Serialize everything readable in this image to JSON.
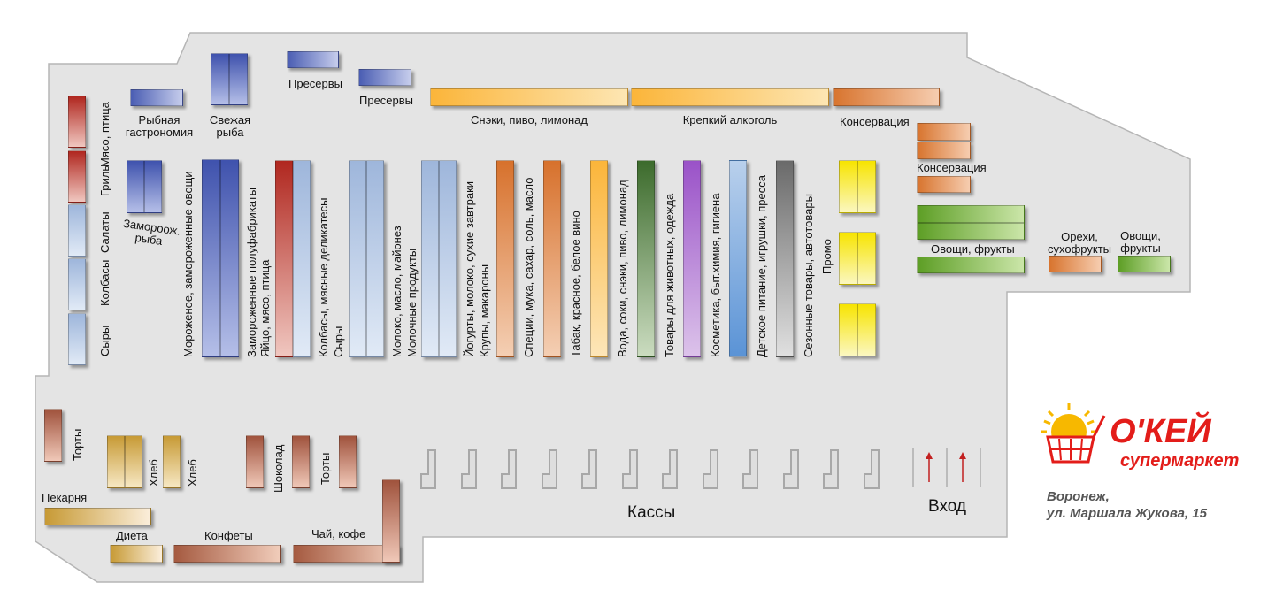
{
  "store_map": {
    "section_labels": {
      "fish_gastronomy": "Рыбная гастрономия",
      "fresh_fish": "Свежая рыба",
      "preserves_1": "Пресервы",
      "preserves_2": "Пресервы",
      "snacks_beer": "Снэки, пиво, лимонад",
      "strong_alcohol": "Крепкий алкоголь",
      "canned_1": "Консервация",
      "canned_2": "Консервация",
      "meat_poultry": "Мясо, птица",
      "grill": "Гриль",
      "salads": "Салаты",
      "sausages": "Колбасы",
      "cheeses": "Сыры",
      "frozen_fish": "Замороож. рыба",
      "ice_cream": "Мороженое, замороженные овощи",
      "frozen_semis": "Замороженные полуфабрикаты",
      "eggs_meat": "Яйцо, мясо, птица",
      "sausages_deli": "Колбасы, мясные деликатесы",
      "cheeses_2": "Сыры",
      "milk_butter": "Молоко, масло, майонез",
      "dairy": "Молочные продукты",
      "yogurts": "Йогурты, молоко, сухие завтраки",
      "groats_pasta": "Крупы, макароны",
      "spices": "Специи, мука, сахар, соль, масло",
      "tobacco_wine": "Табак, красное, белое вино",
      "water_juice": "Вода, соки, снэки, пиво, лимонад",
      "pet_goods": "Товары для животных, одежда",
      "cosmetics": "Косметика, быт.химия, гигиена",
      "baby_food": "Детское питание, игрушки, пресса",
      "seasonal": "Сезонные товары, автотовары",
      "promo": "Промо",
      "veg_fruit_1": "Овощи, фрукты",
      "nuts_dried": "Орехи, сухофрукты",
      "veg_fruit_2": "Овощи, фрукты",
      "cakes_1": "Торты",
      "bread_1": "Хлеб",
      "bread_2": "Хлеб",
      "chocolate": "Шоколад",
      "cakes_2": "Торты",
      "bakery": "Пекарня",
      "diet": "Диета",
      "candies": "Конфеты",
      "tea_coffee": "Чай, кофе",
      "checkouts": "Кассы",
      "entrance": "Вход"
    },
    "colors": {
      "floor": "#e4e4e4",
      "floor_border": "#b5b5b5",
      "brand_red": "#e31d1a",
      "brand_yellow": "#f7b800"
    },
    "checkout_count": 12
  },
  "brand": {
    "logo_text": "О'КЕЙ",
    "logo_sub": "супермаркет",
    "address_city": "Воронеж,",
    "address_street": "ул. Маршала Жукова, 15"
  }
}
